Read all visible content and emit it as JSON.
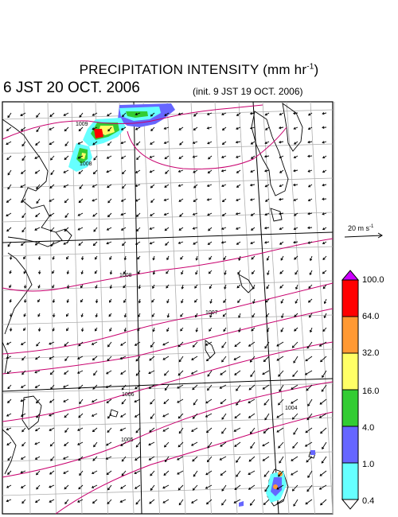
{
  "title": {
    "text": "PRECIPITATION INTENSITY (mm hr",
    "unit_exponent": "-1",
    "close": ")"
  },
  "valid_time": "6 JST 20 OCT. 2006",
  "init_time": "(init. 9 JST 19 OCT. 2006)",
  "wind_scale": {
    "value": "20 m s",
    "exponent": "-1"
  },
  "isobar_labels": [
    "1009",
    "1008",
    "1008",
    "1007",
    "1006",
    "1005",
    "1004"
  ],
  "colorbar": {
    "levels": [
      "100.0",
      "64.0",
      "32.0",
      "16.0",
      "4.0",
      "1.0",
      "0.4"
    ],
    "colors": [
      "#cc00ff",
      "#ff0000",
      "#ff9933",
      "#ffff66",
      "#33cc33",
      "#6666ff",
      "#66ffff",
      "#ffffff"
    ]
  },
  "colors": {
    "isobar": "#c8006e",
    "grid": "#b0b0b0",
    "coast": "#000000",
    "vector": "#000000"
  }
}
